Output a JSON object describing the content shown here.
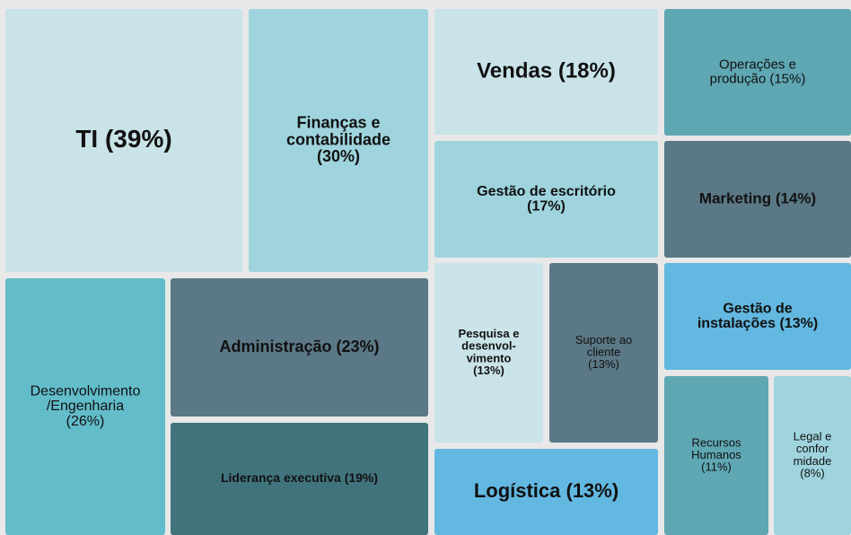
{
  "chart_data": {
    "type": "treemap",
    "items": [
      {
        "label": [
          "TI (39%)"
        ],
        "value": 39,
        "color": "#c9e3e8"
      },
      {
        "label": [
          "Finanças e",
          "contabilidade",
          "(30%)"
        ],
        "value": 30,
        "color": "#9fd4de"
      },
      {
        "label": [
          "Vendas (18%)"
        ],
        "value": 18,
        "color": "#c9e3e8"
      },
      {
        "label": [
          "Operações e",
          "produção (15%)"
        ],
        "value": 15,
        "color": "#5fa7b3"
      },
      {
        "label": [
          "Gestão de escritório",
          "(17%)"
        ],
        "value": 17,
        "color": "#9fd4de"
      },
      {
        "label": [
          "Marketing (14%)"
        ],
        "value": 14,
        "color": "#5b7886"
      },
      {
        "label": [
          "Gestão de",
          "instalações (13%)"
        ],
        "value": 13,
        "color": "#62b8e0"
      },
      {
        "label": [
          "Pesquisa e",
          "desenvol-",
          "vimento",
          "(13%)"
        ],
        "value": 13,
        "color": "#c9e3e8"
      },
      {
        "label": [
          "Suporte ao",
          "cliente",
          "(13%)"
        ],
        "value": 13,
        "color": "#5b7886"
      },
      {
        "label": [
          "Logística (13%)"
        ],
        "value": 13,
        "color": "#62b8e0"
      },
      {
        "label": [
          "Recursos",
          "Humanos",
          "(11%)"
        ],
        "value": 11,
        "color": "#5fa7b3"
      },
      {
        "label": [
          "Legal e",
          "confor",
          "midade",
          "(8%)"
        ],
        "value": 8,
        "color": "#9fd4de"
      },
      {
        "label": [
          "Desenvolvimento",
          "/Engenharia",
          "(26%)"
        ],
        "value": 26,
        "color": "#62bcc9"
      },
      {
        "label": [
          "Administração (23%)"
        ],
        "value": 23,
        "color": "#5b7886"
      },
      {
        "label": [
          "Liderança executiva (19%)"
        ],
        "value": 19,
        "color": "#41737c"
      }
    ]
  }
}
